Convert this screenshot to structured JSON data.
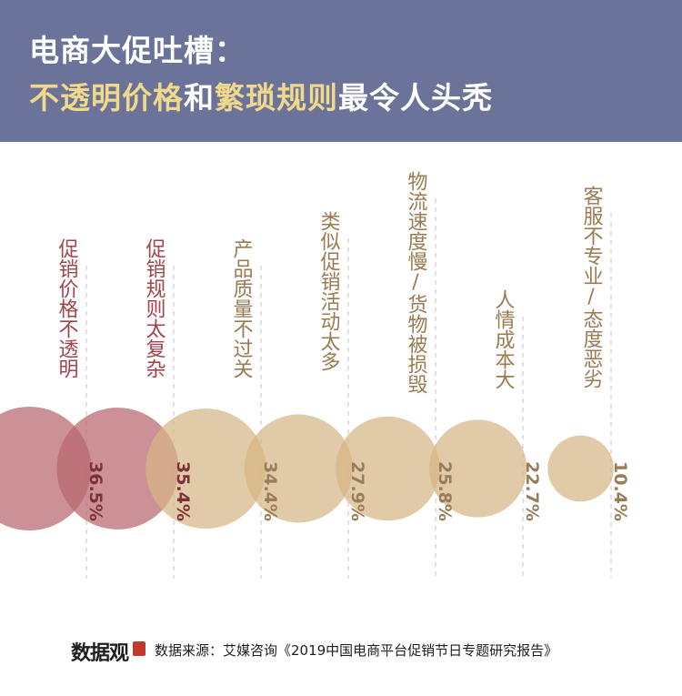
{
  "header": {
    "title_line1": "电商大促吐槽：",
    "title_line2": [
      {
        "text": "不透明价格",
        "style": "hl"
      },
      {
        "text": "和",
        "style": "wh"
      },
      {
        "text": "繁琐规则",
        "style": "hl"
      },
      {
        "text": "最令人头秃",
        "style": "wh"
      }
    ]
  },
  "colors": {
    "header_bg": "#6c739a",
    "highlight": "#f0d98a",
    "red_bubble": "#b8666f",
    "tan_bubble": "#d6b685",
    "red_text": "#a2444c",
    "tan_text": "#9a7b52"
  },
  "chart_data": {
    "type": "bubble",
    "title": "电商大促吐槽：不透明价格和繁琐规则最令人头秃",
    "unit": "%",
    "categories": [
      "促销价格不透明",
      "促销规则太复杂",
      "产品质量不过关",
      "类似促销活动太多",
      "物流速度慢/货物被损毁",
      "人情成本大",
      "客服不专业/态度恶劣"
    ],
    "values": [
      36.5,
      35.4,
      34.4,
      27.9,
      25.8,
      22.7,
      10.4
    ],
    "labels": [
      "36.5%",
      "35.4%",
      "34.4%",
      "27.9%",
      "25.8%",
      "22.7%",
      "10.4%"
    ],
    "highlight_count": 2
  },
  "footer": {
    "logo": "数据观",
    "source": "数据来源：艾媒咨询《2019中国电商平台促销节日专题研究报告》"
  }
}
